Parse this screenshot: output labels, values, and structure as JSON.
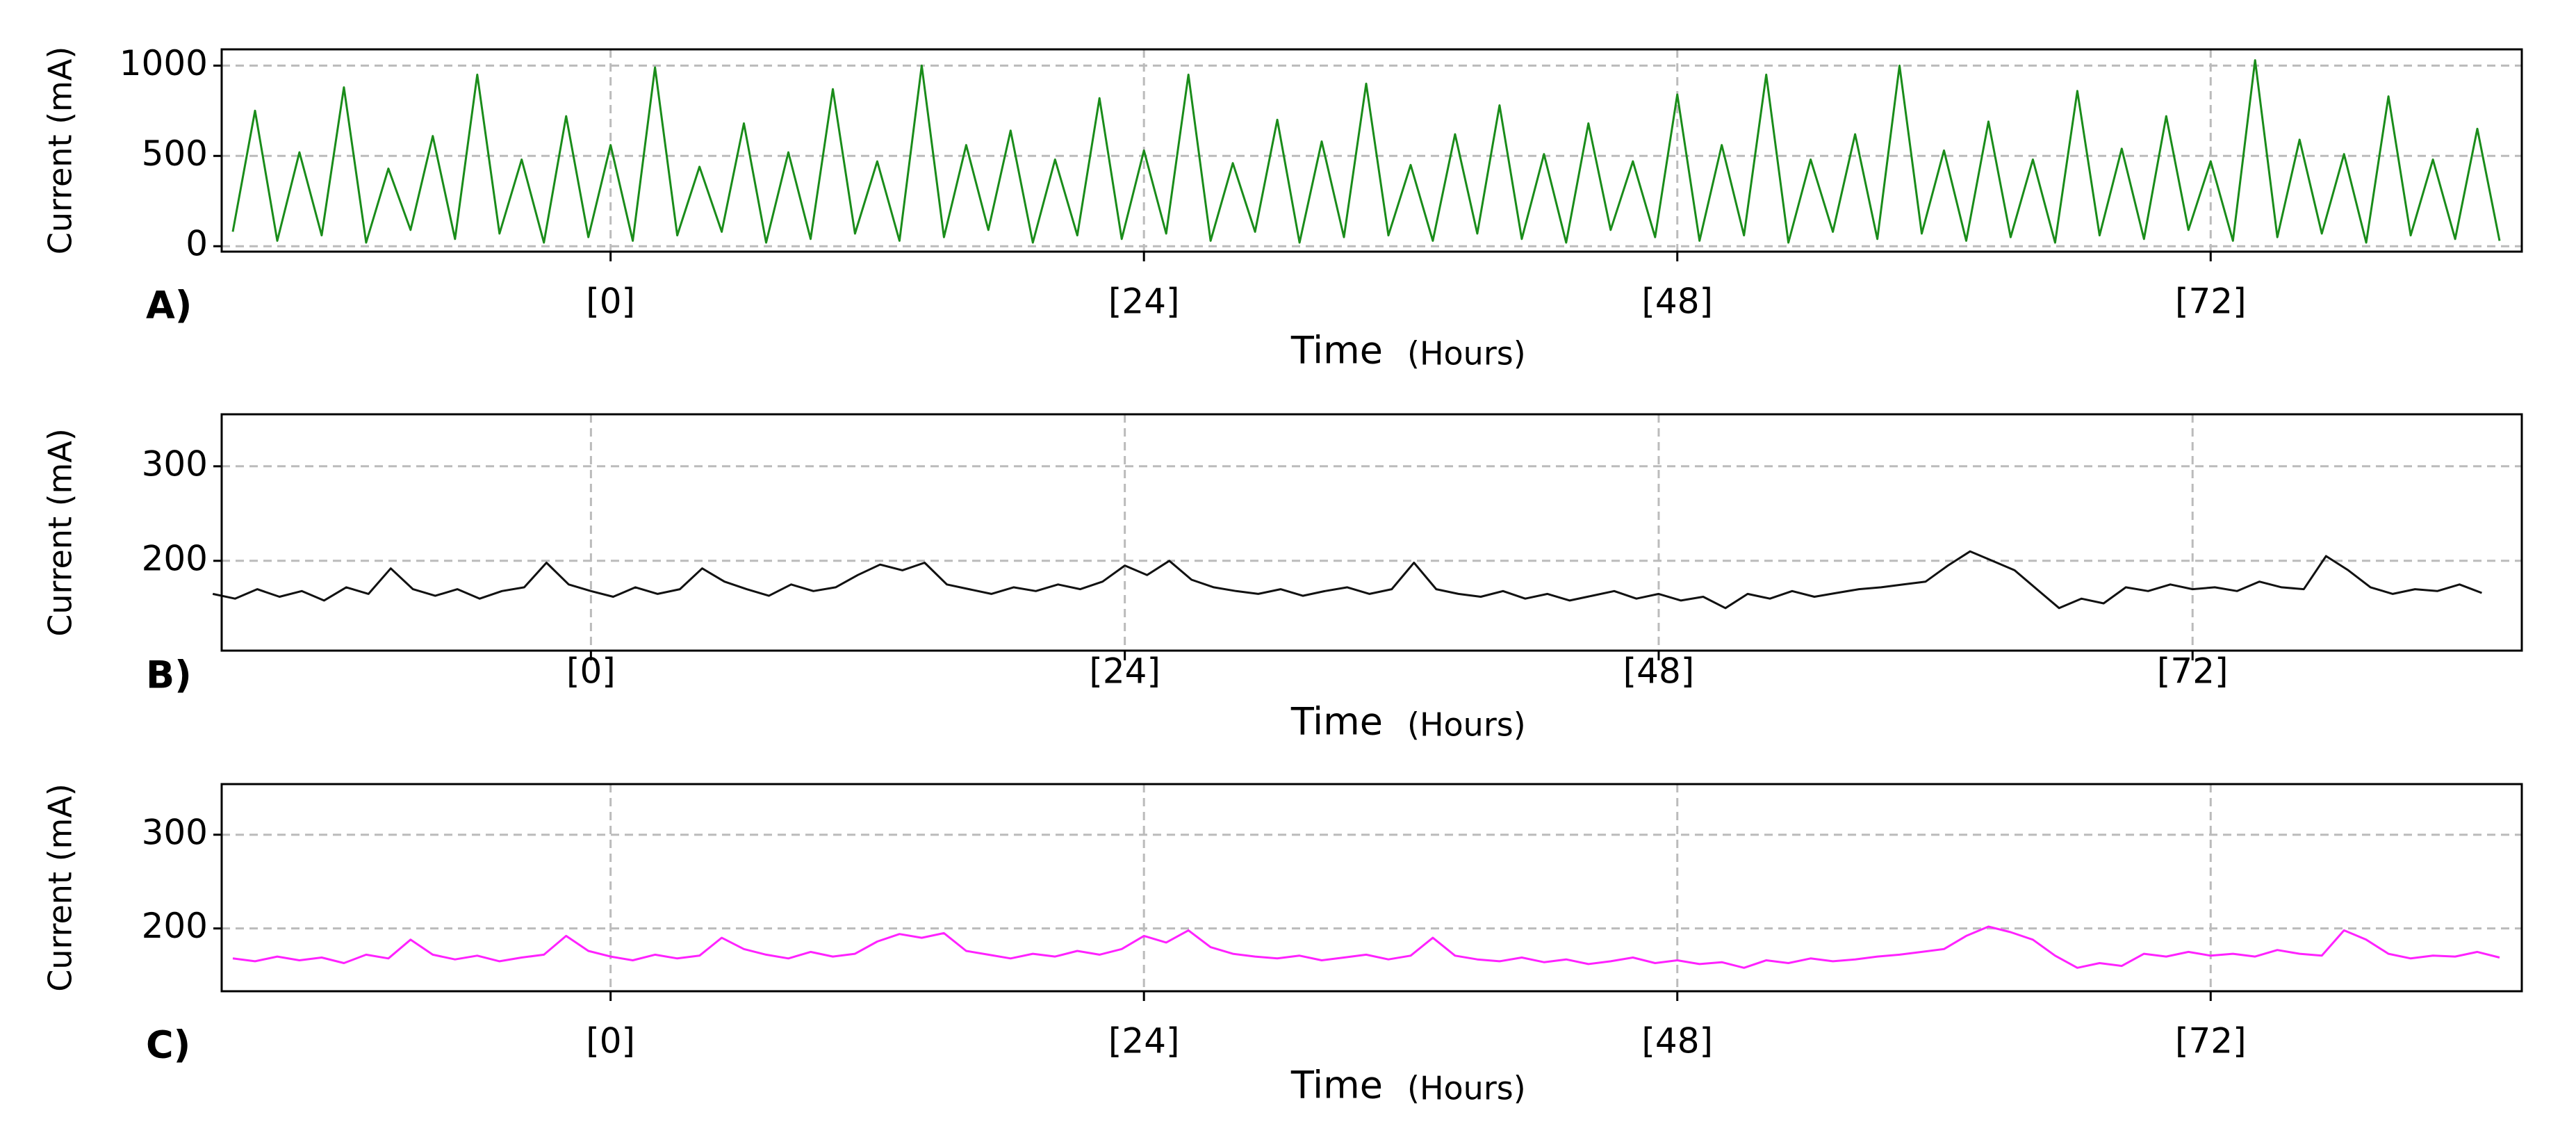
{
  "chart_data": [
    {
      "type": "line",
      "panel_label": "A)",
      "ylabel": "Current (mA)",
      "xlabel": "Time",
      "xunit": "(Hours)",
      "color": "#1a8c1a",
      "grid": true,
      "xlim": [
        -17.5,
        86
      ],
      "ylim": [
        -30,
        1090
      ],
      "xticks": [
        {
          "value": 0,
          "label": "[0]"
        },
        {
          "value": 24,
          "label": "[24]"
        },
        {
          "value": 48,
          "label": "[48]"
        },
        {
          "value": 72,
          "label": "[72]"
        }
      ],
      "yticks": [
        0,
        500,
        1000
      ],
      "x": [
        -17,
        -16,
        -15,
        -14,
        -13,
        -12,
        -11,
        -10,
        -9,
        -8,
        -7,
        -6,
        -5,
        -4,
        -3,
        -2,
        -1,
        0,
        1,
        2,
        3,
        4,
        5,
        6,
        7,
        8,
        9,
        10,
        11,
        12,
        13,
        14,
        15,
        16,
        17,
        18,
        19,
        20,
        21,
        22,
        23,
        24,
        25,
        26,
        27,
        28,
        29,
        30,
        31,
        32,
        33,
        34,
        35,
        36,
        37,
        38,
        39,
        40,
        41,
        42,
        43,
        44,
        45,
        46,
        47,
        48,
        49,
        50,
        51,
        52,
        53,
        54,
        55,
        56,
        57,
        58,
        59,
        60,
        61,
        62,
        63,
        64,
        65,
        66,
        67,
        68,
        69,
        70,
        71,
        72,
        73,
        74,
        75,
        76,
        77,
        78,
        79,
        80,
        81,
        82,
        83,
        84,
        85
      ],
      "values": [
        80,
        750,
        30,
        520,
        60,
        880,
        20,
        430,
        90,
        610,
        40,
        950,
        70,
        480,
        20,
        720,
        50,
        560,
        30,
        990,
        60,
        440,
        80,
        680,
        20,
        520,
        40,
        870,
        70,
        470,
        30,
        1000,
        50,
        560,
        90,
        640,
        20,
        480,
        60,
        820,
        40,
        530,
        70,
        950,
        30,
        460,
        80,
        700,
        20,
        580,
        50,
        900,
        60,
        450,
        30,
        620,
        70,
        780,
        40,
        510,
        20,
        680,
        90,
        470,
        50,
        840,
        30,
        560,
        60,
        950,
        20,
        480,
        80,
        620,
        40,
        1000,
        70,
        530,
        30,
        690,
        50,
        480,
        20,
        860,
        60,
        540,
        40,
        720,
        90,
        470,
        30,
        1030,
        50,
        590,
        70,
        510,
        20,
        830,
        60,
        480,
        40,
        650,
        30
      ]
    },
    {
      "type": "line",
      "panel_label": "B)",
      "ylabel": "Current (mA)",
      "xlabel": "Time",
      "xunit": "(Hours)",
      "color": "#111111",
      "grid": true,
      "xlim": [
        -16.6,
        86.8
      ],
      "ylim": [
        105,
        355
      ],
      "xticks": [
        {
          "value": 0,
          "label": "[0]"
        },
        {
          "value": 24,
          "label": "[24]"
        },
        {
          "value": 48,
          "label": "[48]"
        },
        {
          "value": 72,
          "label": "[72]"
        }
      ],
      "yticks": [
        200,
        300
      ],
      "x": [
        -17,
        -16,
        -15,
        -14,
        -13,
        -12,
        -11,
        -10,
        -9,
        -8,
        -7,
        -6,
        -5,
        -4,
        -3,
        -2,
        -1,
        0,
        1,
        2,
        3,
        4,
        5,
        6,
        7,
        8,
        9,
        10,
        11,
        12,
        13,
        14,
        15,
        16,
        17,
        18,
        19,
        20,
        21,
        22,
        23,
        24,
        25,
        26,
        27,
        28,
        29,
        30,
        31,
        32,
        33,
        34,
        35,
        36,
        37,
        38,
        39,
        40,
        41,
        42,
        43,
        44,
        45,
        46,
        47,
        48,
        49,
        50,
        51,
        52,
        53,
        54,
        55,
        56,
        57,
        58,
        59,
        60,
        61,
        62,
        63,
        64,
        65,
        66,
        67,
        68,
        69,
        70,
        71,
        72,
        73,
        74,
        75,
        76,
        77,
        78,
        79,
        80,
        81,
        82,
        83,
        84,
        85
      ],
      "values": [
        165,
        160,
        170,
        162,
        168,
        158,
        172,
        165,
        192,
        170,
        163,
        170,
        160,
        168,
        172,
        198,
        175,
        168,
        162,
        172,
        165,
        170,
        192,
        178,
        170,
        163,
        175,
        168,
        172,
        185,
        196,
        190,
        198,
        175,
        170,
        165,
        172,
        168,
        175,
        170,
        178,
        195,
        185,
        200,
        180,
        172,
        168,
        165,
        170,
        163,
        168,
        172,
        165,
        170,
        198,
        170,
        165,
        162,
        168,
        160,
        165,
        158,
        163,
        168,
        160,
        165,
        158,
        162,
        150,
        165,
        160,
        168,
        162,
        166,
        170,
        172,
        175,
        178,
        195,
        210,
        200,
        190,
        170,
        150,
        160,
        155,
        172,
        168,
        175,
        170,
        172,
        168,
        178,
        172,
        170,
        205,
        190,
        172,
        165,
        170,
        168,
        175,
        166
      ]
    },
    {
      "type": "line",
      "panel_label": "C)",
      "ylabel": "Current (mA)",
      "xlabel": "Time",
      "xunit": "(Hours)",
      "color": "#ff22ff",
      "grid": true,
      "xlim": [
        -17.5,
        86
      ],
      "ylim": [
        133,
        354
      ],
      "xticks": [
        {
          "value": 0,
          "label": "[0]"
        },
        {
          "value": 24,
          "label": "[24]"
        },
        {
          "value": 48,
          "label": "[48]"
        },
        {
          "value": 72,
          "label": "[72]"
        }
      ],
      "yticks": [
        200,
        300
      ],
      "x": [
        -17,
        -16,
        -15,
        -14,
        -13,
        -12,
        -11,
        -10,
        -9,
        -8,
        -7,
        -6,
        -5,
        -4,
        -3,
        -2,
        -1,
        0,
        1,
        2,
        3,
        4,
        5,
        6,
        7,
        8,
        9,
        10,
        11,
        12,
        13,
        14,
        15,
        16,
        17,
        18,
        19,
        20,
        21,
        22,
        23,
        24,
        25,
        26,
        27,
        28,
        29,
        30,
        31,
        32,
        33,
        34,
        35,
        36,
        37,
        38,
        39,
        40,
        41,
        42,
        43,
        44,
        45,
        46,
        47,
        48,
        49,
        50,
        51,
        52,
        53,
        54,
        55,
        56,
        57,
        58,
        59,
        60,
        61,
        62,
        63,
        64,
        65,
        66,
        67,
        68,
        69,
        70,
        71,
        72,
        73,
        74,
        75,
        76,
        77,
        78,
        79,
        80,
        81,
        82,
        83,
        84,
        85
      ],
      "values": [
        168,
        165,
        170,
        166,
        169,
        163,
        172,
        168,
        188,
        172,
        167,
        171,
        165,
        169,
        172,
        192,
        176,
        170,
        166,
        172,
        168,
        171,
        190,
        178,
        172,
        168,
        175,
        170,
        173,
        186,
        194,
        190,
        195,
        176,
        172,
        168,
        173,
        170,
        176,
        172,
        178,
        192,
        185,
        198,
        180,
        173,
        170,
        168,
        171,
        166,
        169,
        172,
        167,
        171,
        190,
        171,
        167,
        165,
        169,
        164,
        167,
        162,
        165,
        169,
        163,
        166,
        162,
        164,
        158,
        166,
        163,
        168,
        165,
        167,
        170,
        172,
        175,
        178,
        192,
        202,
        196,
        188,
        171,
        158,
        163,
        160,
        173,
        170,
        175,
        171,
        173,
        170,
        177,
        173,
        171,
        198,
        188,
        173,
        168,
        171,
        170,
        175,
        169
      ]
    }
  ]
}
